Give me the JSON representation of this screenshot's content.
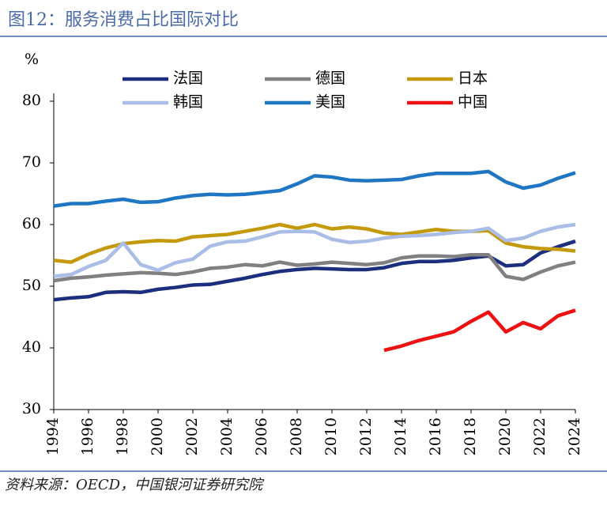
{
  "chart_data": {
    "type": "line",
    "title": "图12：服务消费占比国际对比",
    "y_label": "%",
    "source": "资料来源：OECD，中国银河证券研究院",
    "x": [
      1994,
      1995,
      1996,
      1997,
      1998,
      1999,
      2000,
      2001,
      2002,
      2003,
      2004,
      2005,
      2006,
      2007,
      2008,
      2009,
      2010,
      2011,
      2012,
      2013,
      2014,
      2015,
      2016,
      2017,
      2018,
      2019,
      2020,
      2021,
      2022,
      2023,
      2024
    ],
    "xlim": [
      1994,
      2024
    ],
    "xticks": [
      1994,
      1996,
      1998,
      2000,
      2002,
      2004,
      2006,
      2008,
      2010,
      2012,
      2014,
      2016,
      2018,
      2020,
      2022,
      2024
    ],
    "ylim": [
      30,
      80
    ],
    "yticks": [
      30,
      40,
      50,
      60,
      70,
      80
    ],
    "grid": false,
    "legend": "top",
    "series": [
      {
        "name": "法国",
        "color": "#1c2f7e",
        "values": [
          47.8,
          48.1,
          48.3,
          49.0,
          49.1,
          49.0,
          49.5,
          49.8,
          50.2,
          50.3,
          50.8,
          51.3,
          51.9,
          52.4,
          52.7,
          52.9,
          52.8,
          52.7,
          52.7,
          53.0,
          53.7,
          54.0,
          54.0,
          54.2,
          54.6,
          54.9,
          53.3,
          53.5,
          55.4,
          56.4,
          57.3
        ]
      },
      {
        "name": "德国",
        "color": "#808080",
        "values": [
          50.9,
          51.3,
          51.5,
          51.8,
          52.0,
          52.2,
          52.1,
          51.9,
          52.3,
          52.9,
          53.1,
          53.5,
          53.3,
          53.9,
          53.4,
          53.6,
          53.9,
          53.7,
          53.5,
          53.8,
          54.6,
          54.9,
          54.9,
          54.8,
          55.1,
          55.1,
          51.6,
          51.1,
          52.3,
          53.3,
          53.9
        ]
      },
      {
        "name": "日本",
        "color": "#c49a0c",
        "values": [
          54.2,
          53.9,
          55.2,
          56.2,
          56.9,
          57.2,
          57.4,
          57.3,
          58.0,
          58.2,
          58.4,
          58.9,
          59.4,
          60.0,
          59.4,
          60.0,
          59.3,
          59.6,
          59.3,
          58.6,
          58.4,
          58.8,
          59.2,
          58.9,
          58.9,
          59.0,
          57.0,
          56.4,
          56.1,
          56.0,
          55.7
        ]
      },
      {
        "name": "韩国",
        "color": "#a9bde6",
        "values": [
          51.6,
          51.9,
          53.2,
          54.2,
          57.0,
          53.5,
          52.6,
          53.8,
          54.4,
          56.5,
          57.2,
          57.3,
          58.0,
          58.8,
          58.9,
          58.8,
          57.6,
          57.1,
          57.3,
          57.8,
          58.1,
          58.2,
          58.4,
          58.7,
          58.9,
          59.4,
          57.4,
          57.8,
          58.9,
          59.6,
          60.0
        ]
      },
      {
        "name": "美国",
        "color": "#1f77c4",
        "values": [
          63.0,
          63.4,
          63.4,
          63.8,
          64.1,
          63.6,
          63.7,
          64.3,
          64.7,
          64.9,
          64.8,
          64.9,
          65.2,
          65.5,
          66.6,
          67.9,
          67.7,
          67.2,
          67.1,
          67.2,
          67.3,
          67.9,
          68.3,
          68.3,
          68.3,
          68.6,
          66.9,
          65.9,
          66.4,
          67.5,
          68.4
        ]
      },
      {
        "name": "中国",
        "color": "#ee1111",
        "values": [
          null,
          null,
          null,
          null,
          null,
          null,
          null,
          null,
          null,
          null,
          null,
          null,
          null,
          null,
          null,
          null,
          null,
          null,
          null,
          39.6,
          40.3,
          41.2,
          41.9,
          42.6,
          44.3,
          45.8,
          42.6,
          44.1,
          43.1,
          45.2,
          46.1
        ]
      }
    ]
  }
}
